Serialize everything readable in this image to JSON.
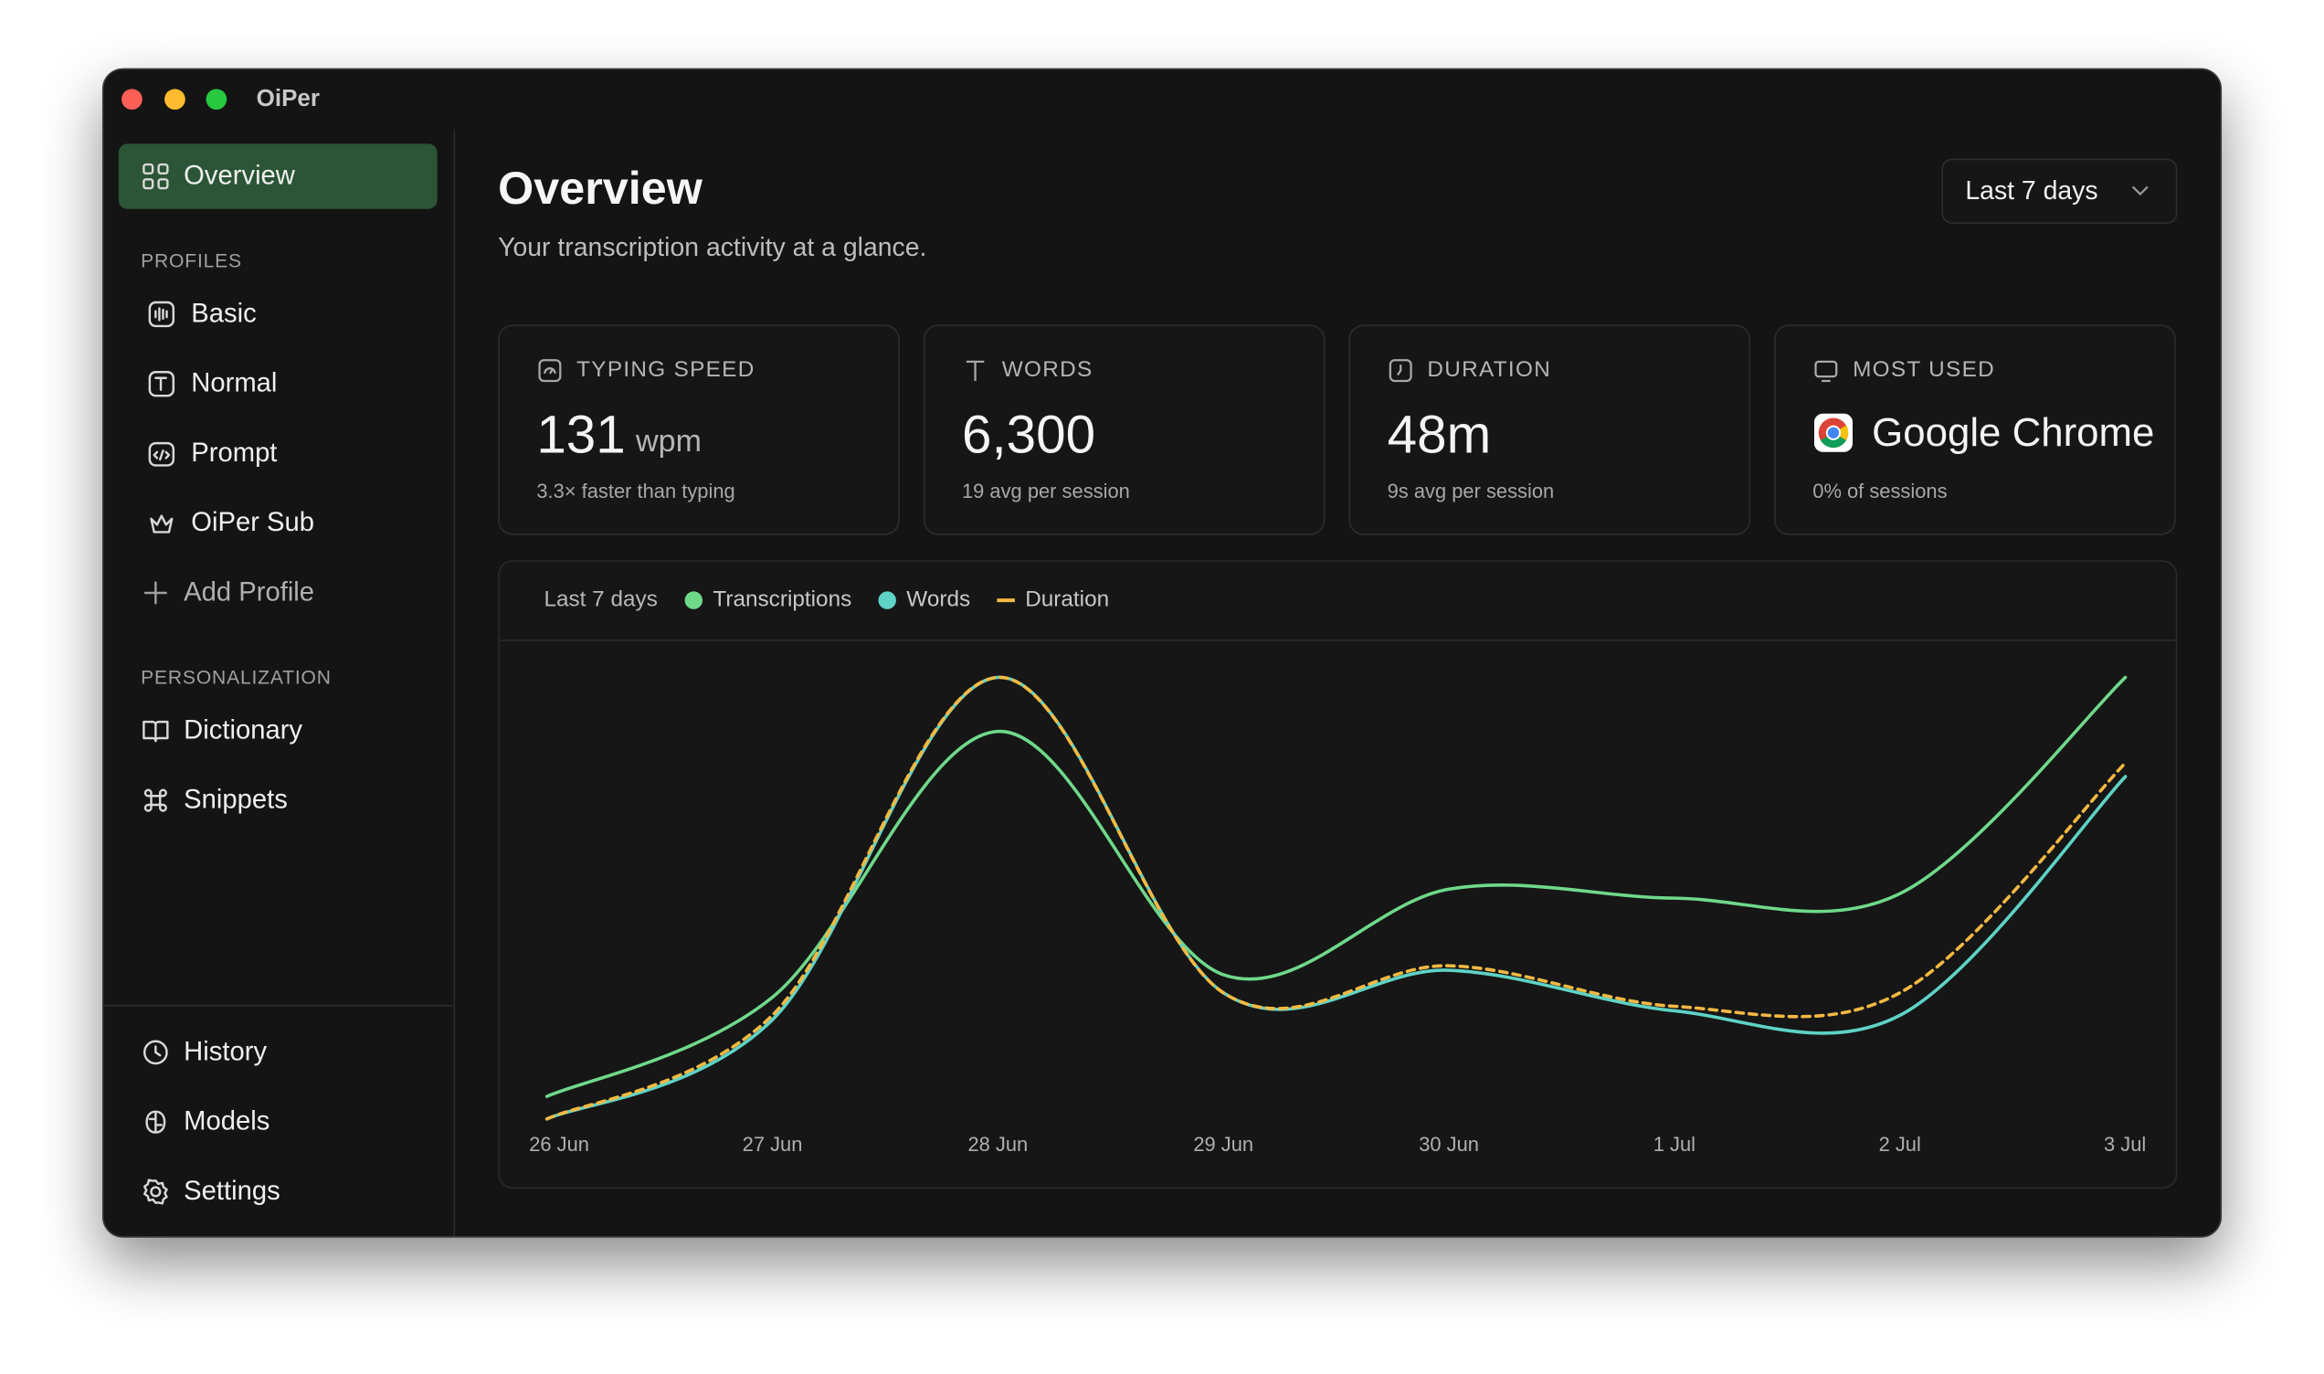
{
  "window": {
    "title": "OiPer"
  },
  "sidebar": {
    "primary": "Overview",
    "profiles_heading": "PROFILES",
    "profiles": [
      "Basic",
      "Normal",
      "Prompt",
      "OiPer Sub"
    ],
    "add_profile": "Add Profile",
    "personalization_heading": "PERSONALIZATION",
    "personalization": [
      "Dictionary",
      "Snippets"
    ],
    "footer": [
      "History",
      "Models",
      "Settings"
    ]
  },
  "header": {
    "title": "Overview",
    "subtitle": "Your transcription activity at a glance.",
    "range": "Last 7 days"
  },
  "stats": [
    {
      "label": "TYPING SPEED",
      "value": "131",
      "unit": "wpm",
      "note": "3.3× faster than typing"
    },
    {
      "label": "WORDS",
      "value": "6,300",
      "note": "19 avg per session"
    },
    {
      "label": "DURATION",
      "value": "48m",
      "note": "9s avg per session"
    },
    {
      "label": "MOST USED",
      "value": "Google Chrome",
      "note": "0% of sessions"
    }
  ],
  "chart_data": {
    "type": "line",
    "subtitle": "Last 7 days",
    "categories": [
      "26 Jun",
      "27 Jun",
      "28 Jun",
      "29 Jun",
      "30 Jun",
      "1 Jul",
      "2 Jul",
      "3 Jul"
    ],
    "series": [
      {
        "name": "Transcriptions",
        "color": "#6fd98a",
        "values": [
          7,
          29,
          88,
          34,
          53,
          51,
          52,
          100
        ]
      },
      {
        "name": "Words",
        "color": "#5ed3c6",
        "values": [
          2,
          24,
          100,
          30,
          35,
          26,
          25,
          78
        ]
      },
      {
        "name": "Duration",
        "color": "#f4b942",
        "dashed": true,
        "values": [
          2,
          25,
          100,
          30,
          36,
          27,
          30,
          81
        ]
      }
    ]
  }
}
